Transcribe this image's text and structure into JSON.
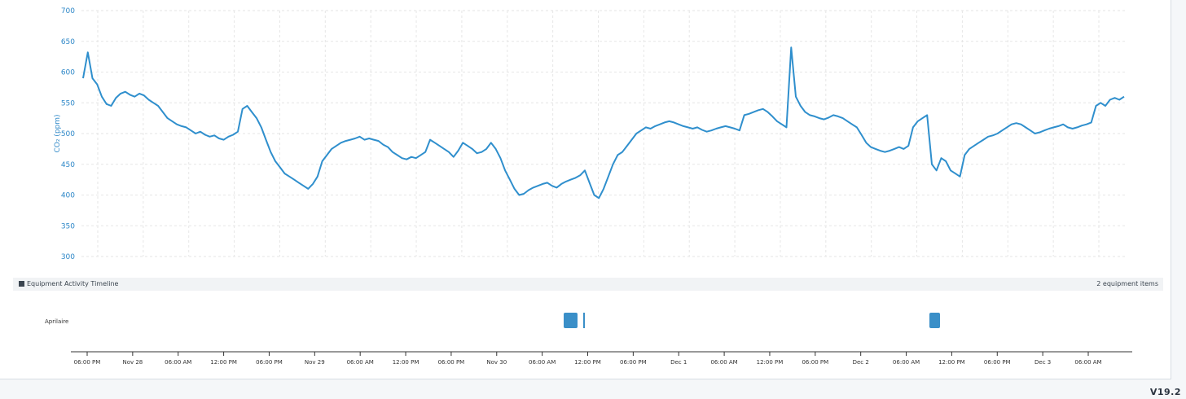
{
  "chart_data": {
    "type": "line",
    "ylabel": "CO₂ (ppm)",
    "ylim": [
      300,
      700
    ],
    "y_ticks": [
      "700",
      "650",
      "600",
      "550",
      "500",
      "450",
      "400",
      "350",
      "300"
    ],
    "grid": true,
    "color": "#2f8fcd",
    "series": [
      {
        "values": [
          590,
          632,
          590,
          580,
          560,
          548,
          545,
          558,
          565,
          568,
          563,
          560,
          565,
          562,
          555,
          550,
          545,
          535,
          525,
          520,
          515,
          512,
          510,
          505,
          500,
          503,
          498,
          495,
          497,
          492,
          490,
          495,
          498,
          503,
          540,
          545,
          535,
          525,
          510,
          490,
          470,
          455,
          445,
          435,
          430,
          425,
          420,
          415,
          410,
          418,
          430,
          455,
          465,
          475,
          480,
          485,
          488,
          490,
          492,
          495,
          490,
          492,
          490,
          488,
          482,
          478,
          470,
          465,
          460,
          458,
          462,
          460,
          465,
          470,
          490,
          485,
          480,
          475,
          470,
          462,
          472,
          485,
          480,
          475,
          468,
          470,
          475,
          485,
          475,
          460,
          440,
          425,
          410,
          400,
          402,
          408,
          412,
          415,
          418,
          420,
          415,
          412,
          418,
          422,
          425,
          428,
          432,
          440,
          420,
          400,
          395,
          410,
          430,
          450,
          465,
          470,
          480,
          490,
          500,
          505,
          510,
          508,
          512,
          515,
          518,
          520,
          518,
          515,
          512,
          510,
          508,
          510,
          506,
          503,
          505,
          508,
          510,
          512,
          510,
          508,
          505,
          530,
          532,
          535,
          538,
          540,
          535,
          528,
          520,
          515,
          510,
          640,
          560,
          545,
          535,
          530,
          528,
          525,
          523,
          526,
          530,
          528,
          525,
          520,
          515,
          510,
          498,
          485,
          478,
          475,
          472,
          470,
          472,
          475,
          478,
          475,
          480,
          510,
          520,
          525,
          530,
          450,
          440,
          460,
          455,
          440,
          435,
          430,
          465,
          475,
          480,
          485,
          490,
          495,
          497,
          500,
          505,
          510,
          515,
          517,
          515,
          510,
          505,
          500,
          502,
          505,
          508,
          510,
          512,
          515,
          510,
          508,
          510,
          513,
          515,
          518,
          545,
          550,
          545,
          555,
          558,
          555,
          560
        ]
      }
    ],
    "x_ticks": [
      "06:00 PM",
      "Nov 28",
      "06:00 AM",
      "12:00 PM",
      "06:00 PM",
      "Nov 29",
      "06:00 AM",
      "12:00 PM",
      "06:00 PM",
      "Nov 30",
      "06:00 AM",
      "12:00 PM",
      "06:00 PM",
      "Dec 1",
      "06:00 AM",
      "12:00 PM",
      "06:00 PM",
      "Dec 2",
      "06:00 AM",
      "12:00 PM",
      "06:00 PM",
      "Dec 3",
      "06:00 AM"
    ]
  },
  "timeline": {
    "title": "Equipment Activity Timeline",
    "count": "2 equipment items",
    "rows": [
      {
        "label": "Aprilaire"
      }
    ]
  },
  "footer": {
    "version": "V19.2"
  }
}
